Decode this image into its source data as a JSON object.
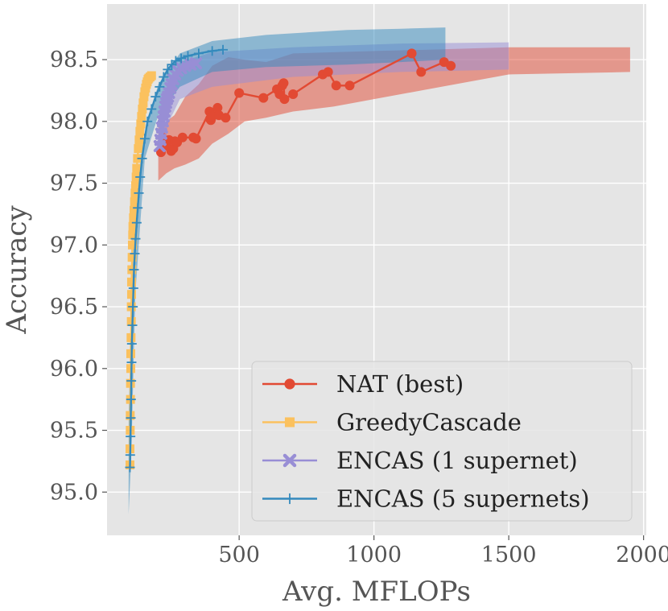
{
  "chart_data": {
    "type": "line",
    "title": "",
    "xlabel": "Avg. MFLOPs",
    "ylabel": "Accuracy",
    "xlim": [
      10,
      2010
    ],
    "ylim": [
      94.65,
      98.95
    ],
    "grid": true,
    "background": "#e5e5e5",
    "legend_position": "lower-right",
    "x_ticks": [
      500,
      1000,
      1500,
      2000
    ],
    "x_tick_labels": [
      "500",
      "1000",
      "1500",
      "2000"
    ],
    "y_ticks": [
      95.0,
      95.5,
      96.0,
      96.5,
      97.0,
      97.5,
      98.0,
      98.5
    ],
    "y_tick_labels": [
      "95.0",
      "95.5",
      "96.0",
      "96.5",
      "97.0",
      "97.5",
      "98.0",
      "98.5"
    ],
    "series": [
      {
        "name": "NAT (best)",
        "color": "#e24a33",
        "marker": "circle",
        "x": [
          210,
          215,
          222,
          230,
          240,
          248,
          256,
          262,
          270,
          290,
          330,
          340,
          390,
          392,
          395,
          400,
          420,
          425,
          450,
          500,
          590,
          640,
          650,
          660,
          665,
          668,
          700,
          810,
          830,
          860,
          910,
          1140,
          1175,
          1260,
          1285
        ],
        "y": [
          97.75,
          97.87,
          97.8,
          97.83,
          97.85,
          97.76,
          97.78,
          97.84,
          97.83,
          97.87,
          97.87,
          97.86,
          98.08,
          98.02,
          98.01,
          98.04,
          98.11,
          98.05,
          98.03,
          98.23,
          98.19,
          98.26,
          98.22,
          98.29,
          98.31,
          98.18,
          98.22,
          98.38,
          98.4,
          98.29,
          98.29,
          98.55,
          98.4,
          98.48,
          98.45
        ],
        "band_upper": [
          97.95,
          98.0,
          98.05,
          98.2,
          98.3,
          98.45,
          98.52,
          98.5,
          98.48,
          98.55,
          98.56,
          98.57,
          98.58,
          98.6,
          98.6
        ],
        "band_lower": [
          97.52,
          97.58,
          97.62,
          97.65,
          97.7,
          97.82,
          97.9,
          98.0,
          98.03,
          98.08,
          98.12,
          98.18,
          98.26,
          98.38,
          98.4
        ],
        "band_x": [
          200,
          230,
          260,
          300,
          350,
          400,
          460,
          520,
          600,
          700,
          850,
          1000,
          1200,
          1500,
          1950
        ]
      },
      {
        "name": "GreedyCascade",
        "color": "#fbc15e",
        "marker": "square",
        "x": [
          95,
          95,
          96,
          96,
          97,
          97,
          98,
          98,
          99,
          100,
          100,
          101,
          101,
          102,
          103,
          104,
          105,
          106,
          108,
          110,
          112,
          114,
          116,
          118,
          120,
          123,
          126,
          129,
          132,
          135,
          138,
          141,
          144,
          147,
          150,
          153,
          156,
          159,
          162,
          165,
          170,
          175
        ],
        "y": [
          95.22,
          95.35,
          95.5,
          95.62,
          95.75,
          95.88,
          96.0,
          96.12,
          96.25,
          96.38,
          96.5,
          96.6,
          96.7,
          96.8,
          96.9,
          97.0,
          97.08,
          97.15,
          97.22,
          97.28,
          97.35,
          97.42,
          97.48,
          97.55,
          97.62,
          97.7,
          97.78,
          97.85,
          97.92,
          97.98,
          98.04,
          98.1,
          98.15,
          98.2,
          98.24,
          98.27,
          98.3,
          98.32,
          98.34,
          98.35,
          98.36,
          98.37
        ]
      },
      {
        "name": "ENCAS (1 supernet)",
        "color": "#988ed5",
        "marker": "x",
        "x": [
          205,
          208,
          211,
          214,
          217,
          220,
          223,
          226,
          229,
          232,
          236,
          240,
          245,
          250,
          256,
          263,
          272,
          285,
          300,
          320,
          340
        ],
        "y": [
          97.8,
          97.85,
          97.9,
          97.95,
          98.0,
          98.04,
          98.08,
          98.12,
          98.15,
          98.18,
          98.2,
          98.23,
          98.27,
          98.3,
          98.34,
          98.38,
          98.41,
          98.43,
          98.45,
          98.46,
          98.47
        ],
        "band_upper": [
          97.95,
          98.1,
          98.3,
          98.48,
          98.56,
          98.6,
          98.63,
          98.64
        ],
        "band_lower": [
          97.7,
          97.85,
          98.0,
          98.18,
          98.28,
          98.36,
          98.4,
          98.42
        ],
        "band_x": [
          200,
          215,
          240,
          280,
          400,
          700,
          1100,
          1500
        ]
      },
      {
        "name": "ENCAS (5 supernets)",
        "color": "#348abd",
        "marker": "plus",
        "x": [
          95,
          96,
          97,
          98,
          99,
          100,
          101,
          102,
          104,
          106,
          108,
          110,
          113,
          116,
          120,
          124,
          128,
          133,
          140,
          150,
          160,
          175,
          190,
          205,
          220,
          235,
          250,
          265,
          285,
          310,
          350,
          400,
          440
        ],
        "y": [
          95.2,
          95.3,
          95.45,
          95.6,
          95.75,
          95.9,
          96.05,
          96.2,
          96.35,
          96.5,
          96.65,
          96.8,
          96.93,
          97.05,
          97.18,
          97.3,
          97.42,
          97.55,
          97.7,
          97.86,
          98.0,
          98.1,
          98.2,
          98.28,
          98.36,
          98.42,
          98.46,
          98.49,
          98.51,
          98.53,
          98.55,
          98.57,
          98.58
        ],
        "band_upper": [
          95.6,
          96.5,
          97.4,
          97.9,
          98.3,
          98.55,
          98.65,
          98.7,
          98.74,
          98.75,
          98.76
        ],
        "band_lower": [
          94.82,
          95.3,
          96.6,
          97.7,
          98.05,
          98.28,
          98.4,
          98.44,
          98.46,
          98.48,
          98.5
        ],
        "band_x": [
          90,
          100,
          115,
          150,
          200,
          280,
          400,
          600,
          900,
          1100,
          1265
        ]
      }
    ]
  }
}
